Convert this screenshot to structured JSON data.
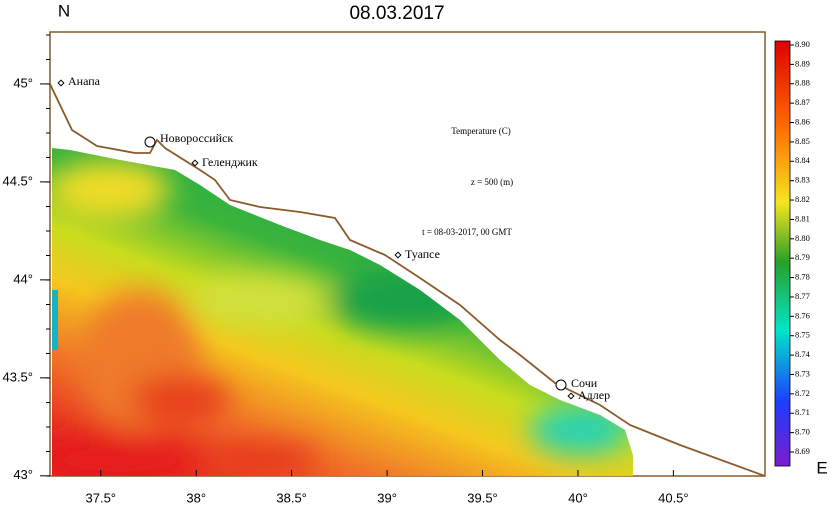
{
  "title": "08.03.2017",
  "north_label": "N",
  "east_label": "E",
  "map": {
    "xlim": [
      37.234,
      40.98
    ],
    "ylim": [
      42.999,
      45.265
    ],
    "xticks": [
      {
        "value": 37.5,
        "label": "37.5°"
      },
      {
        "value": 38,
        "label": "38°"
      },
      {
        "value": 38.5,
        "label": "38.5°"
      },
      {
        "value": 39,
        "label": "39°"
      },
      {
        "value": 39.5,
        "label": "39.5°"
      },
      {
        "value": 40,
        "label": "40°"
      },
      {
        "value": 40.5,
        "label": "40.5°"
      }
    ],
    "yticks": [
      {
        "value": 45,
        "label": "45°"
      },
      {
        "value": 44.5,
        "label": "44.5°"
      },
      {
        "value": 44,
        "label": "44°"
      },
      {
        "value": 43.5,
        "label": "43.5°"
      },
      {
        "value": 43,
        "label": "43°"
      }
    ],
    "cities": [
      "Анапа",
      "Новороссийск",
      "Геленджик",
      "Туапсе",
      "Сочи",
      "Адлер"
    ],
    "annotations": [
      "Temperature (C)",
      "z = 500 (m)",
      "t = 08-03-2017, 00 GMT"
    ]
  },
  "colorbar": {
    "labels": [
      "8.90",
      "8.89",
      "8.88",
      "8.87",
      "8.86",
      "8.85",
      "8.84",
      "8.83",
      "8.82",
      "8.81",
      "8.80",
      "8.79",
      "8.78",
      "8.77",
      "8.76",
      "8.75",
      "8.74",
      "8.73",
      "8.72",
      "8.71",
      "8.70",
      "8.69"
    ]
  }
}
